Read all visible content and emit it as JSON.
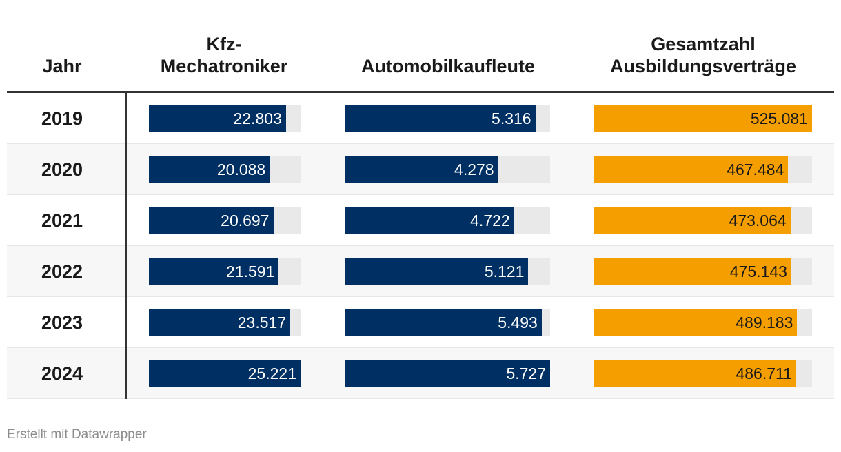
{
  "colors": {
    "blue": "#003063",
    "orange": "#f59e00",
    "track": "#e9e9e9"
  },
  "headers": {
    "year": "Jahr",
    "kfz_line1": "Kfz-",
    "kfz_line2": "Mechatroniker",
    "auto": "Automobilkaufleute",
    "ges_line1": "Gesamtzahl",
    "ges_line2": "Ausbildungsverträge"
  },
  "footer": {
    "credit": "Erstellt mit Datawrapper"
  },
  "chart_data": {
    "type": "table",
    "columns": [
      "Jahr",
      "Kfz-Mechatroniker",
      "Automobilkaufleute",
      "Gesamtzahl Ausbildungsverträge"
    ],
    "max": {
      "kfz": 25221,
      "auto": 5727,
      "ges": 525081
    },
    "rows": [
      {
        "year": "2019",
        "kfz": 22803,
        "kfz_label": "22.803",
        "auto": 5316,
        "auto_label": "5.316",
        "ges": 525081,
        "ges_label": "525.081"
      },
      {
        "year": "2020",
        "kfz": 20088,
        "kfz_label": "20.088",
        "auto": 4278,
        "auto_label": "4.278",
        "ges": 467484,
        "ges_label": "467.484"
      },
      {
        "year": "2021",
        "kfz": 20697,
        "kfz_label": "20.697",
        "auto": 4722,
        "auto_label": "4.722",
        "ges": 473064,
        "ges_label": "473.064"
      },
      {
        "year": "2022",
        "kfz": 21591,
        "kfz_label": "21.591",
        "auto": 5121,
        "auto_label": "5.121",
        "ges": 475143,
        "ges_label": "475.143"
      },
      {
        "year": "2023",
        "kfz": 23517,
        "kfz_label": "23.517",
        "auto": 5493,
        "auto_label": "5.493",
        "ges": 489183,
        "ges_label": "489.183"
      },
      {
        "year": "2024",
        "kfz": 25221,
        "kfz_label": "25.221",
        "auto": 5727,
        "auto_label": "5.727",
        "ges": 486711,
        "ges_label": "486.711"
      }
    ]
  }
}
